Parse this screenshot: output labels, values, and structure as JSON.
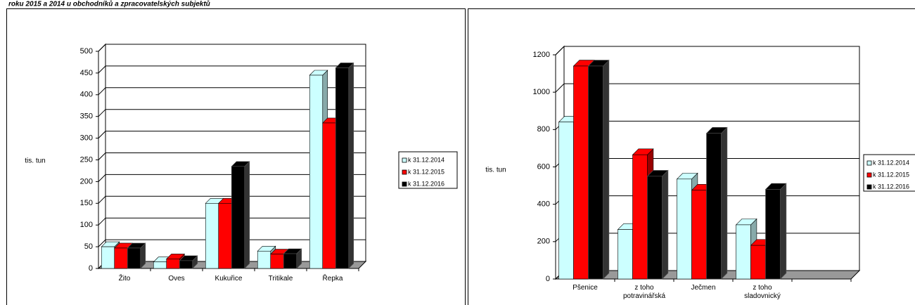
{
  "header": {
    "title": "roku 2015 a 2014 u obchodníků a zpracovatelských subjektů"
  },
  "chart_data": [
    {
      "type": "bar3d",
      "y_label": "tis. tun",
      "categories": [
        "Žito",
        "Oves",
        "Kukuřice",
        "Tritikale",
        "Řepka"
      ],
      "series": [
        {
          "name": "k 31.12.2014",
          "color": "#ccffff",
          "values": [
            50,
            15,
            150,
            40,
            445
          ]
        },
        {
          "name": "k 31.12.2015",
          "color": "#ff0000",
          "values": [
            47,
            22,
            150,
            33,
            335
          ]
        },
        {
          "name": "k 31.12.2016",
          "color": "#000000",
          "values": [
            47,
            18,
            235,
            34,
            462
          ]
        }
      ],
      "ylim": [
        0,
        500
      ],
      "yticks": [
        0,
        50,
        100,
        150,
        200,
        250,
        300,
        350,
        400,
        450,
        500
      ],
      "grid": true,
      "legend": "right"
    },
    {
      "type": "bar3d",
      "y_label": "tis. tun",
      "categories": [
        "Pšenice",
        "z toho potravinářská",
        "Ječmen",
        "z toho sladovnický",
        null
      ],
      "series": [
        {
          "name": "k 31.12.2014",
          "color": "#ccffff",
          "values": [
            840,
            265,
            535,
            290,
            null
          ]
        },
        {
          "name": "k 31.12.2015",
          "color": "#ff0000",
          "values": [
            1140,
            665,
            475,
            180,
            null
          ]
        },
        {
          "name": "k 31.12.2016",
          "color": "#000000",
          "values": [
            1140,
            550,
            780,
            480,
            null
          ]
        }
      ],
      "ylim": [
        0,
        1200
      ],
      "yticks": [
        0,
        200,
        400,
        600,
        800,
        1000,
        1200
      ],
      "grid": true,
      "legend": "right"
    }
  ]
}
